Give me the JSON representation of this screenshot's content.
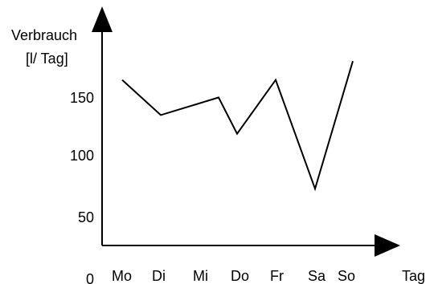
{
  "chart_data": {
    "type": "line",
    "title": "",
    "ylabel_lines": [
      "Verbrauch",
      "[l/ Tag]"
    ],
    "xlabel": "Tag",
    "categories": [
      "Mo",
      "Di",
      "Mi",
      "Do",
      "Fr",
      "Sa",
      "So"
    ],
    "y_ticks": [
      "150",
      "100",
      "50"
    ],
    "origin_label": "0",
    "y_tick_values": [
      150,
      100,
      50
    ],
    "ylim": [
      0,
      200
    ],
    "series": [
      {
        "values": [
          164,
          134,
          149,
          118,
          164,
          71,
          180
        ]
      }
    ],
    "grid": false,
    "legend": "none",
    "line_color": "#000000"
  }
}
